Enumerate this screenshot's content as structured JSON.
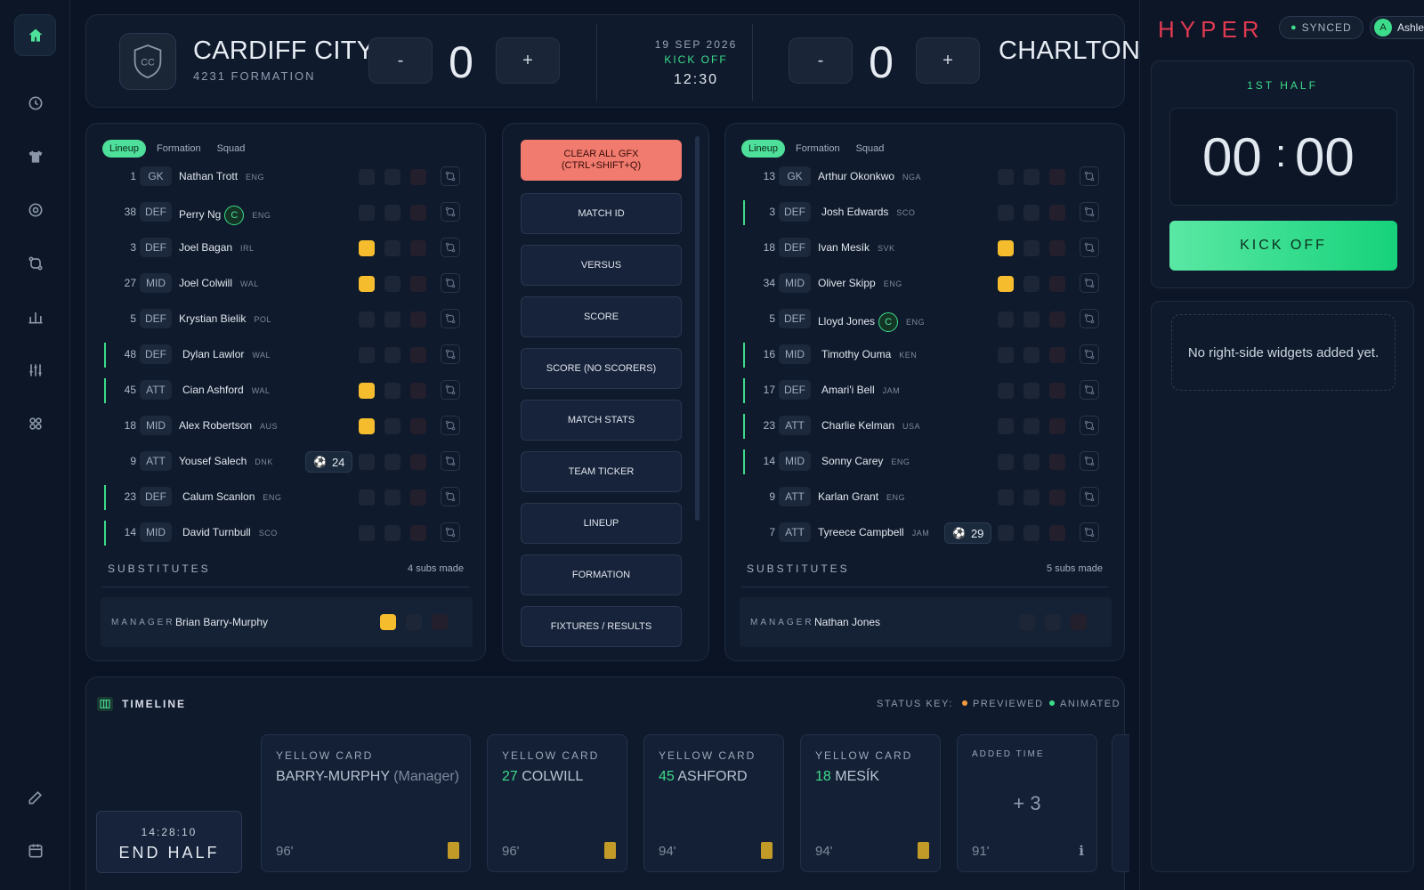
{
  "sidebar": {
    "items": [
      "home-icon",
      "clock-icon",
      "shirt-icon",
      "target-icon",
      "swap-icon",
      "chart-icon",
      "sliders-icon",
      "grid-icon",
      "edit-icon",
      "calendar-icon"
    ]
  },
  "match": {
    "home": {
      "name": "CARDIFF CITY",
      "formation": "4231 FORMATION",
      "crest": "CC",
      "score": "0"
    },
    "away": {
      "name": "CHARLTON",
      "score": "0"
    },
    "date": "19 SEP 2026",
    "status": "KICK OFF",
    "time": "12:30",
    "minus_label": "-",
    "plus_label": "+"
  },
  "tabs": [
    "Lineup",
    "Formation",
    "Squad"
  ],
  "home_lineup": [
    {
      "num": "1",
      "pos": "GK",
      "name": "Nathan Trott",
      "nat": "ENG",
      "sub": false,
      "captain": false,
      "cards": [
        "n",
        "n",
        "r"
      ]
    },
    {
      "num": "38",
      "pos": "DEF",
      "name": "Perry Ng",
      "nat": "ENG",
      "sub": false,
      "captain": true,
      "cards": [
        "n",
        "n",
        "r"
      ]
    },
    {
      "num": "3",
      "pos": "DEF",
      "name": "Joel Bagan",
      "nat": "IRL",
      "sub": false,
      "captain": false,
      "cards": [
        "y",
        "n",
        "r"
      ]
    },
    {
      "num": "27",
      "pos": "MID",
      "name": "Joel Colwill",
      "nat": "WAL",
      "sub": false,
      "captain": false,
      "cards": [
        "y",
        "n",
        "r"
      ]
    },
    {
      "num": "5",
      "pos": "DEF",
      "name": "Krystian Bielik",
      "nat": "POL",
      "sub": false,
      "captain": false,
      "cards": [
        "n",
        "n",
        "r"
      ]
    },
    {
      "num": "48",
      "pos": "DEF",
      "name": "Dylan Lawlor",
      "nat": "WAL",
      "sub": true,
      "captain": false,
      "cards": [
        "n",
        "n",
        "r"
      ]
    },
    {
      "num": "45",
      "pos": "ATT",
      "name": "Cian Ashford",
      "nat": "WAL",
      "sub": true,
      "captain": false,
      "cards": [
        "y",
        "n",
        "r"
      ]
    },
    {
      "num": "18",
      "pos": "MID",
      "name": "Alex Robertson",
      "nat": "AUS",
      "sub": false,
      "captain": false,
      "cards": [
        "y",
        "n",
        "r"
      ]
    },
    {
      "num": "9",
      "pos": "ATT",
      "name": "Yousef Salech",
      "nat": "DNK",
      "sub": false,
      "captain": false,
      "goal": "24",
      "cards": [
        "n",
        "n",
        "r"
      ]
    },
    {
      "num": "23",
      "pos": "DEF",
      "name": "Calum Scanlon",
      "nat": "ENG",
      "sub": true,
      "captain": false,
      "cards": [
        "n",
        "n",
        "r"
      ]
    },
    {
      "num": "14",
      "pos": "MID",
      "name": "David Turnbull",
      "nat": "SCO",
      "sub": true,
      "captain": false,
      "cards": [
        "n",
        "n",
        "r"
      ]
    }
  ],
  "away_lineup": [
    {
      "num": "13",
      "pos": "GK",
      "name": "Arthur Okonkwo",
      "nat": "NGA",
      "sub": false,
      "captain": false,
      "cards": [
        "n",
        "n",
        "r"
      ]
    },
    {
      "num": "3",
      "pos": "DEF",
      "name": "Josh Edwards",
      "nat": "SCO",
      "sub": true,
      "captain": false,
      "cards": [
        "n",
        "n",
        "r"
      ]
    },
    {
      "num": "18",
      "pos": "DEF",
      "name": "Ivan Mesík",
      "nat": "SVK",
      "sub": false,
      "captain": false,
      "cards": [
        "y",
        "n",
        "r"
      ]
    },
    {
      "num": "34",
      "pos": "MID",
      "name": "Oliver Skipp",
      "nat": "ENG",
      "sub": false,
      "captain": false,
      "cards": [
        "y",
        "n",
        "r"
      ]
    },
    {
      "num": "5",
      "pos": "DEF",
      "name": "Lloyd Jones",
      "nat": "ENG",
      "sub": false,
      "captain": true,
      "cards": [
        "n",
        "n",
        "r"
      ]
    },
    {
      "num": "16",
      "pos": "MID",
      "name": "Timothy Ouma",
      "nat": "KEN",
      "sub": true,
      "captain": false,
      "cards": [
        "n",
        "n",
        "r"
      ]
    },
    {
      "num": "17",
      "pos": "DEF",
      "name": "Amari'i Bell",
      "nat": "JAM",
      "sub": true,
      "captain": false,
      "cards": [
        "n",
        "n",
        "r"
      ]
    },
    {
      "num": "23",
      "pos": "ATT",
      "name": "Charlie Kelman",
      "nat": "USA",
      "sub": true,
      "captain": false,
      "cards": [
        "n",
        "n",
        "r"
      ]
    },
    {
      "num": "14",
      "pos": "MID",
      "name": "Sonny Carey",
      "nat": "ENG",
      "sub": true,
      "captain": false,
      "cards": [
        "n",
        "n",
        "r"
      ]
    },
    {
      "num": "9",
      "pos": "ATT",
      "name": "Karlan Grant",
      "nat": "ENG",
      "sub": false,
      "captain": false,
      "cards": [
        "n",
        "n",
        "r"
      ]
    },
    {
      "num": "7",
      "pos": "ATT",
      "name": "Tyreece Campbell",
      "nat": "JAM",
      "sub": false,
      "captain": false,
      "goal": "29",
      "cards": [
        "n",
        "n",
        "r"
      ]
    }
  ],
  "captain_label": "C",
  "home_subs": {
    "label": "SUBSTITUTES",
    "count": "4 subs made"
  },
  "away_subs": {
    "label": "SUBSTITUTES",
    "count": "5 subs made"
  },
  "home_manager": {
    "label": "MANAGER",
    "name": "Brian  Barry-Murphy",
    "cards": [
      "y",
      "n",
      "r"
    ]
  },
  "away_manager": {
    "label": "MANAGER",
    "name": "Nathan  Jones",
    "cards": [
      "n",
      "n",
      "r"
    ]
  },
  "gfx": {
    "clear_line1": "CLEAR ALL GFX",
    "clear_line2": "(CTRL+SHIFT+Q)",
    "buttons": [
      "MATCH ID",
      "VERSUS",
      "SCORE",
      "SCORE (NO SCORERS)",
      "MATCH STATS",
      "TEAM TICKER",
      "LINEUP",
      "FORMATION",
      "FIXTURES / RESULTS"
    ]
  },
  "timeline": {
    "title": "TIMELINE",
    "status_key": "STATUS KEY:",
    "previewed": "PREVIEWED",
    "animated": "ANIMATED",
    "previewed_color": "#f59a3e",
    "animated_color": "#3ddc8b",
    "end_half_time": "14:28:10",
    "end_half_label": "END HALF",
    "events": [
      {
        "type": "YELLOW CARD",
        "num": "",
        "name": "BARRY-MURPHY",
        "role": "(Manager)",
        "minute": "96'"
      },
      {
        "type": "YELLOW CARD",
        "num": "27",
        "name": "COLWILL",
        "role": "",
        "minute": "96'"
      },
      {
        "type": "YELLOW CARD",
        "num": "45",
        "name": "ASHFORD",
        "role": "",
        "minute": "94'"
      },
      {
        "type": "YELLOW CARD",
        "num": "18",
        "name": "MESÍK",
        "role": "",
        "minute": "94'"
      }
    ],
    "added_time": {
      "type": "ADDED TIME",
      "value": "+ 3",
      "minute": "91'"
    }
  },
  "right": {
    "logo": "HYPER",
    "synced": "SYNCED",
    "user_initial": "A",
    "user_name": "Ashley",
    "half": "1ST HALF",
    "clock_min": "00",
    "clock_sep": ":",
    "clock_sec": "00",
    "kickoff": "KICK OFF",
    "widgets_empty": "No right-side widgets added yet."
  },
  "colors": {
    "accent": "#3ddc8b",
    "yellow_card": "#f5bd2e",
    "clear_button": "#f07b6e",
    "brand": "#e03a52"
  }
}
